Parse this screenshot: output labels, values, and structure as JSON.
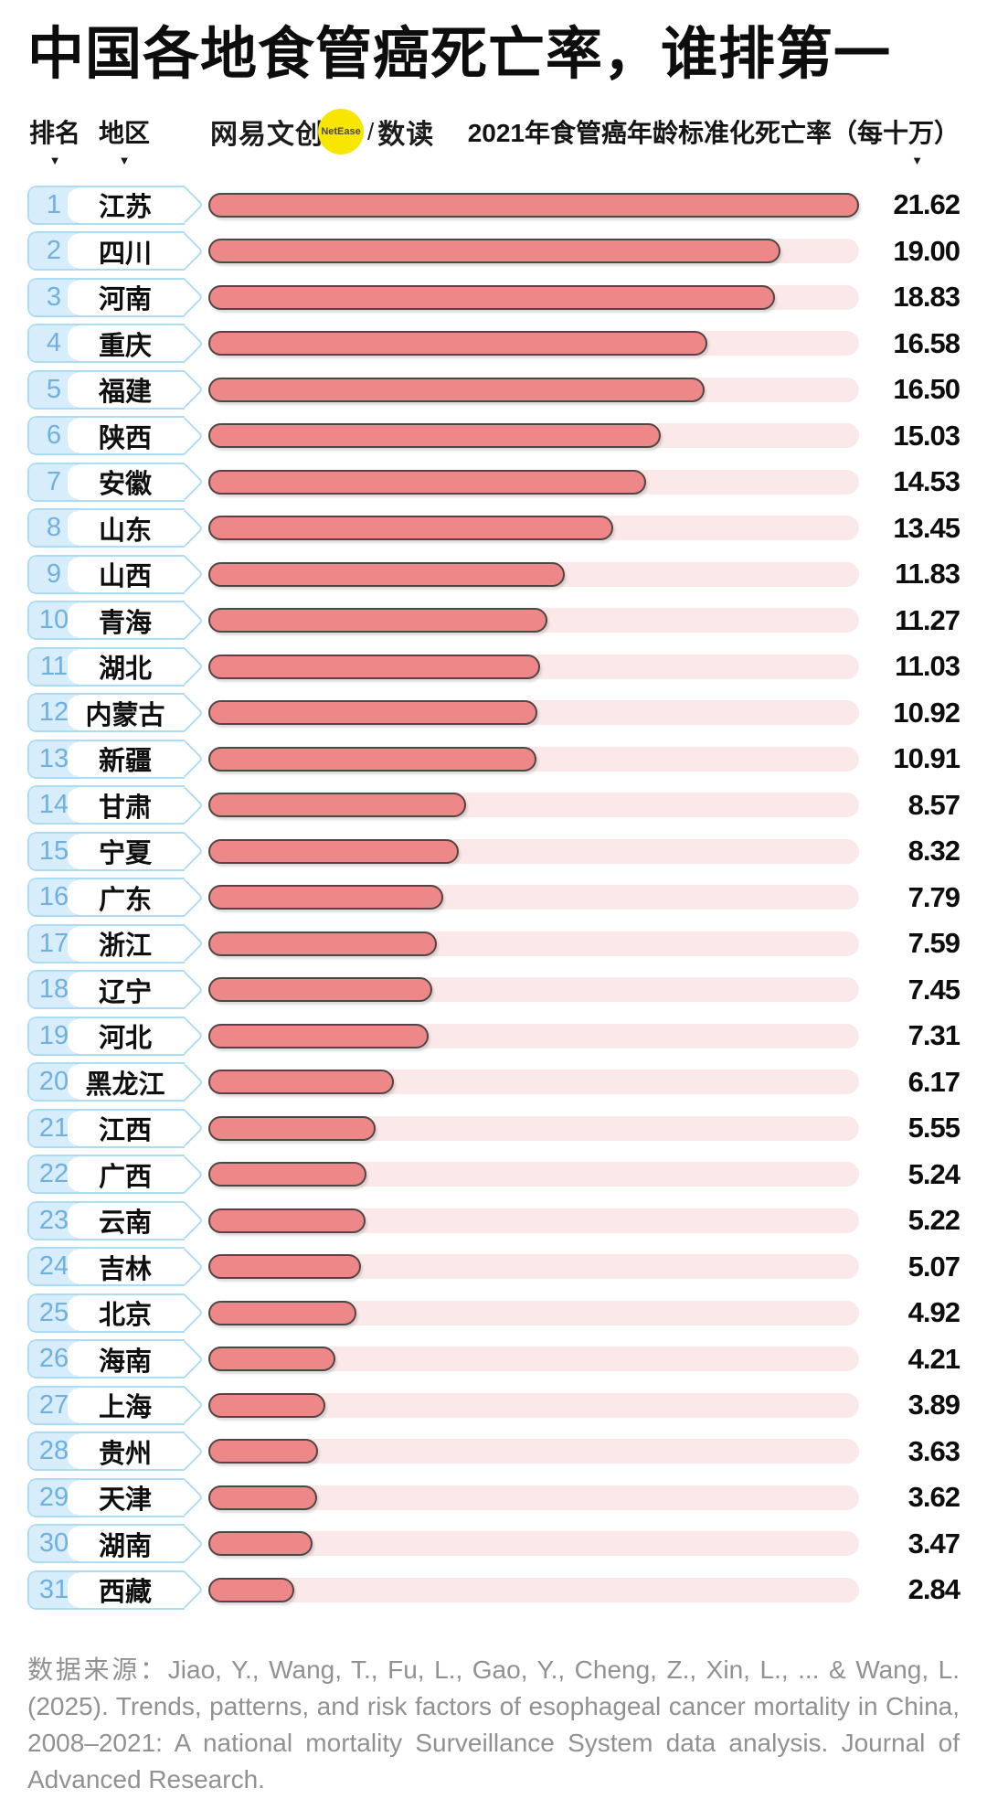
{
  "title": "中国各地食管癌死亡率，谁排第一",
  "header": {
    "rank_label": "排名",
    "region_label": "地区",
    "value_label": "2021年食管癌年龄标准化死亡率（每十万）",
    "sort_indicator": "▼"
  },
  "logo": {
    "brand": "网易文创",
    "badge": "NetEase",
    "separator": "/",
    "sub_brand": "数读",
    "badge_color": "#f7e600"
  },
  "chart_data": {
    "type": "bar",
    "orientation": "horizontal",
    "title": "中国各地食管癌死亡率，谁排第一",
    "value_axis_label": "2021年食管癌年龄标准化死亡率（每十万）",
    "xlim": [
      0,
      21.62
    ],
    "grid": false,
    "legend": false,
    "bar_color": "#ee8787",
    "bar_border_color": "#514646",
    "track_color": "#fbe9e9",
    "categories": [
      "江苏",
      "四川",
      "河南",
      "重庆",
      "福建",
      "陕西",
      "安徽",
      "山东",
      "山西",
      "青海",
      "湖北",
      "内蒙古",
      "新疆",
      "甘肃",
      "宁夏",
      "广东",
      "浙江",
      "辽宁",
      "河北",
      "黑龙江",
      "江西",
      "广西",
      "云南",
      "吉林",
      "北京",
      "海南",
      "上海",
      "贵州",
      "天津",
      "湖南",
      "西藏"
    ],
    "ranks": [
      1,
      2,
      3,
      4,
      5,
      6,
      7,
      8,
      9,
      10,
      11,
      12,
      13,
      14,
      15,
      16,
      17,
      18,
      19,
      20,
      21,
      22,
      23,
      24,
      25,
      26,
      27,
      28,
      29,
      30,
      31
    ],
    "values": [
      21.62,
      19.0,
      18.83,
      16.58,
      16.5,
      15.03,
      14.53,
      13.45,
      11.83,
      11.27,
      11.03,
      10.92,
      10.91,
      8.57,
      8.32,
      7.79,
      7.59,
      7.45,
      7.31,
      6.17,
      5.55,
      5.24,
      5.22,
      5.07,
      4.92,
      4.21,
      3.89,
      3.63,
      3.62,
      3.47,
      2.84
    ]
  },
  "rows": [
    {
      "rank": "1",
      "region": "江苏",
      "value": "21.62"
    },
    {
      "rank": "2",
      "region": "四川",
      "value": "19.00"
    },
    {
      "rank": "3",
      "region": "河南",
      "value": "18.83"
    },
    {
      "rank": "4",
      "region": "重庆",
      "value": "16.58"
    },
    {
      "rank": "5",
      "region": "福建",
      "value": "16.50"
    },
    {
      "rank": "6",
      "region": "陕西",
      "value": "15.03"
    },
    {
      "rank": "7",
      "region": "安徽",
      "value": "14.53"
    },
    {
      "rank": "8",
      "region": "山东",
      "value": "13.45"
    },
    {
      "rank": "9",
      "region": "山西",
      "value": "11.83"
    },
    {
      "rank": "10",
      "region": "青海",
      "value": "11.27"
    },
    {
      "rank": "11",
      "region": "湖北",
      "value": "11.03"
    },
    {
      "rank": "12",
      "region": "内蒙古",
      "value": "10.92"
    },
    {
      "rank": "13",
      "region": "新疆",
      "value": "10.91"
    },
    {
      "rank": "14",
      "region": "甘肃",
      "value": "8.57"
    },
    {
      "rank": "15",
      "region": "宁夏",
      "value": "8.32"
    },
    {
      "rank": "16",
      "region": "广东",
      "value": "7.79"
    },
    {
      "rank": "17",
      "region": "浙江",
      "value": "7.59"
    },
    {
      "rank": "18",
      "region": "辽宁",
      "value": "7.45"
    },
    {
      "rank": "19",
      "region": "河北",
      "value": "7.31"
    },
    {
      "rank": "20",
      "region": "黑龙江",
      "value": "6.17"
    },
    {
      "rank": "21",
      "region": "江西",
      "value": "5.55"
    },
    {
      "rank": "22",
      "region": "广西",
      "value": "5.24"
    },
    {
      "rank": "23",
      "region": "云南",
      "value": "5.22"
    },
    {
      "rank": "24",
      "region": "吉林",
      "value": "5.07"
    },
    {
      "rank": "25",
      "region": "北京",
      "value": "4.92"
    },
    {
      "rank": "26",
      "region": "海南",
      "value": "4.21"
    },
    {
      "rank": "27",
      "region": "上海",
      "value": "3.89"
    },
    {
      "rank": "28",
      "region": "贵州",
      "value": "3.63"
    },
    {
      "rank": "29",
      "region": "天津",
      "value": "3.62"
    },
    {
      "rank": "30",
      "region": "湖南",
      "value": "3.47"
    },
    {
      "rank": "31",
      "region": "西藏",
      "value": "2.84"
    }
  ],
  "footer": {
    "source": "数据来源：Jiao, Y., Wang, T., Fu, L., Gao, Y., Cheng, Z., Xin, L., ... & Wang, L. (2025). Trends, patterns, and risk factors of esophageal cancer mortality in China, 2008–2021: A national mortality Surveillance System data analysis. Journal of Advanced Research."
  }
}
